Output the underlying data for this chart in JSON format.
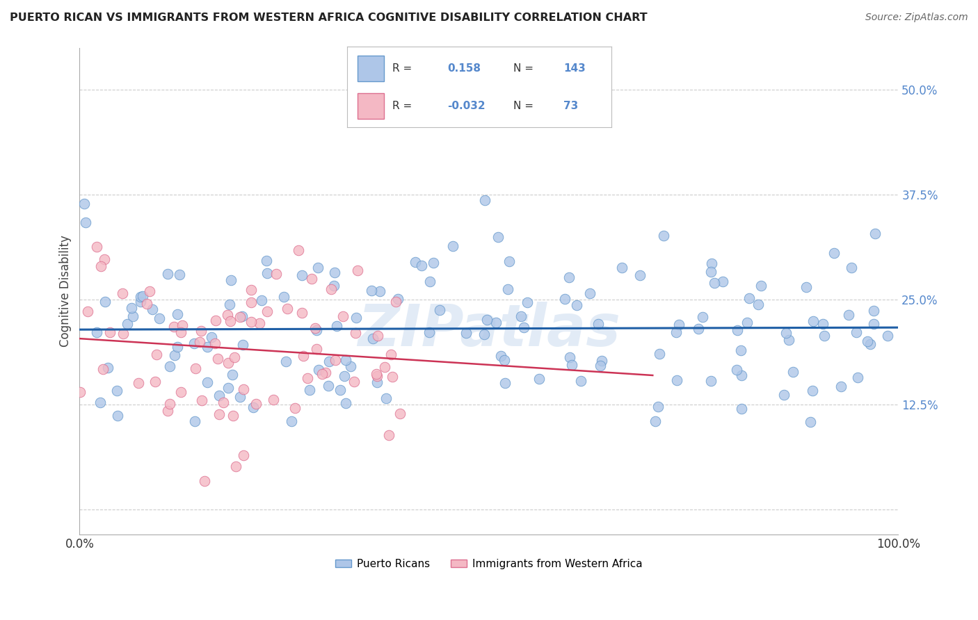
{
  "title": "PUERTO RICAN VS IMMIGRANTS FROM WESTERN AFRICA COGNITIVE DISABILITY CORRELATION CHART",
  "source": "Source: ZipAtlas.com",
  "ylabel": "Cognitive Disability",
  "xlim": [
    0,
    100
  ],
  "ylim": [
    -3,
    55
  ],
  "yticks": [
    12.5,
    25.0,
    37.5,
    50.0
  ],
  "yticklabels": [
    "12.5%",
    "25.0%",
    "37.5%",
    "50.0%"
  ],
  "xticks": [
    0,
    100
  ],
  "xticklabels": [
    "0.0%",
    "100.0%"
  ],
  "blue_color": "#aec6e8",
  "blue_edge": "#6699cc",
  "blue_line": "#1f5fa6",
  "pink_color": "#f4b8c4",
  "pink_edge": "#dd7090",
  "pink_line": "#cc3355",
  "R_blue": 0.158,
  "N_blue": 143,
  "R_pink": -0.032,
  "N_pink": 73,
  "legend_label_blue": "Puerto Ricans",
  "legend_label_pink": "Immigrants from Western Africa",
  "watermark": "ZIPatlas",
  "tick_color": "#5588cc",
  "title_color": "#222222",
  "source_color": "#666666"
}
